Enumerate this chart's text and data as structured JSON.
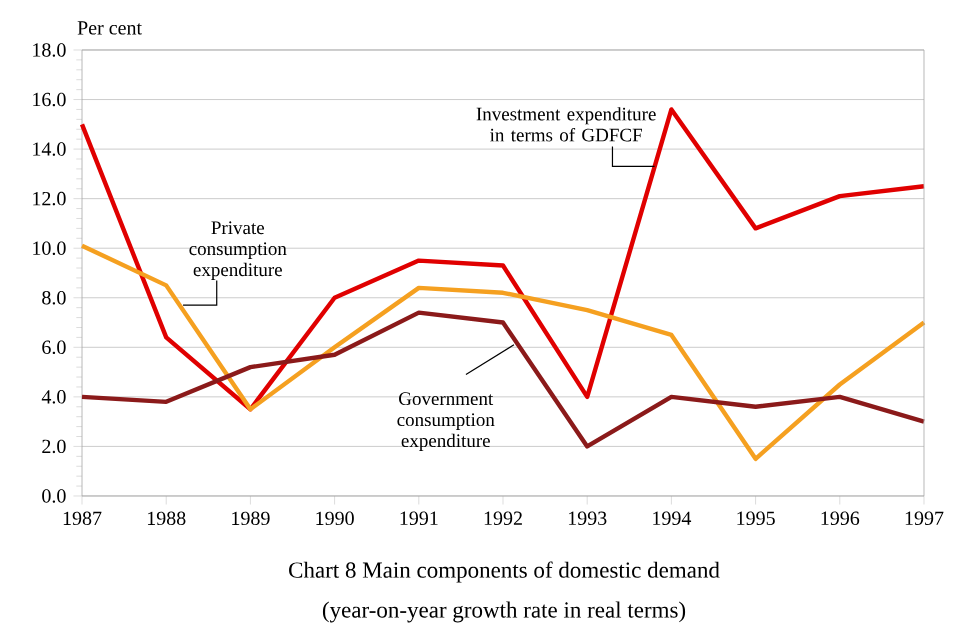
{
  "chart_data": {
    "type": "line",
    "title": "Chart 8 Main components of domestic demand",
    "subtitle": "(year-on-year growth rate in real terms)",
    "ylabel": "Per cent",
    "categories": [
      "1987",
      "1988",
      "1989",
      "1990",
      "1991",
      "1992",
      "1993",
      "1994",
      "1995",
      "1996",
      "1997"
    ],
    "series": [
      {
        "name": "Investment expenditure in terms of GDFCF",
        "color": "#e00000",
        "values": [
          15.0,
          6.4,
          3.5,
          8.0,
          9.5,
          9.3,
          4.0,
          15.6,
          10.8,
          12.1,
          12.5
        ]
      },
      {
        "name": "Private consumption expenditure",
        "color": "#f5a020",
        "values": [
          10.1,
          8.5,
          3.5,
          6.0,
          8.4,
          8.2,
          7.5,
          6.5,
          1.5,
          4.5,
          7.0
        ]
      },
      {
        "name": "Government consumption expenditure",
        "color": "#8b1a1a",
        "values": [
          4.0,
          3.8,
          5.2,
          5.7,
          7.4,
          7.0,
          2.0,
          4.0,
          3.6,
          4.0,
          3.0
        ]
      }
    ],
    "ylim": [
      0,
      18
    ],
    "yticks": [
      {
        "value": 0,
        "label": "0.0"
      },
      {
        "value": 2,
        "label": "2.0"
      },
      {
        "value": 4,
        "label": "4.0"
      },
      {
        "value": 6,
        "label": "6.0"
      },
      {
        "value": 8,
        "label": "8.0"
      },
      {
        "value": 10,
        "label": "10.0"
      },
      {
        "value": 12,
        "label": "12.0"
      },
      {
        "value": 14,
        "label": "14.0"
      },
      {
        "value": 16,
        "label": "16.0"
      },
      {
        "value": 18,
        "label": "18.0"
      }
    ],
    "grid": "y",
    "legend": false,
    "marker": "none",
    "line_style": "solid"
  }
}
